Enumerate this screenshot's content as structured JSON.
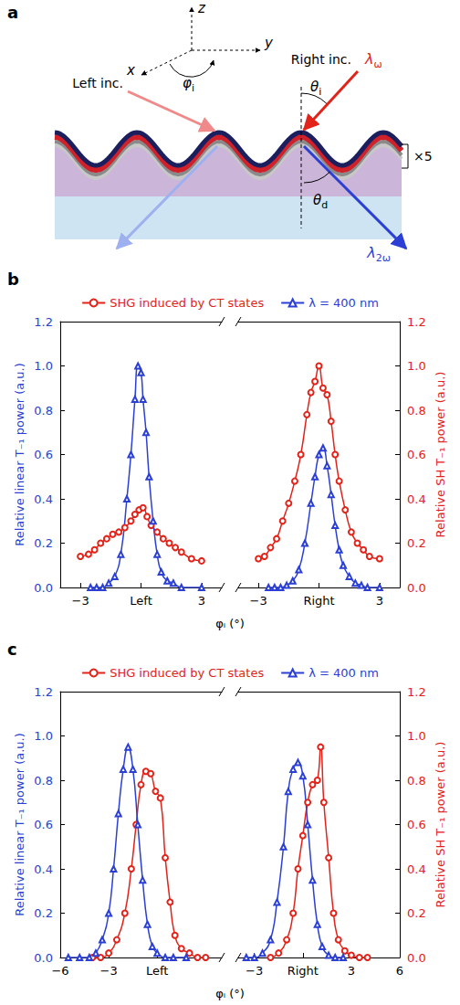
{
  "diagram": {
    "panel": "a",
    "labels": {
      "z": "z",
      "y": "y",
      "x": "x",
      "phi": {
        "base": "φ",
        "sub": "i"
      },
      "left": "Left inc.",
      "right": "Right inc.",
      "lambda_in": {
        "base": "λ",
        "sub": "ω"
      },
      "theta_i": {
        "base": "θ",
        "sub": "i"
      },
      "theta_d": {
        "base": "θ",
        "sub": "d"
      },
      "lambda_out": {
        "base": "λ",
        "sub": "2ω"
      },
      "layers": "×5"
    }
  },
  "chart_data": [
    {
      "type": "line",
      "panel": "b",
      "x_label": "φᵢ (°)",
      "y_label": "Relative linear T₋₁ power (a.u.)",
      "y2_label": "Relative SH T₋₁ power (a.u.)",
      "ylim": [
        0,
        1.2
      ],
      "yticks": [
        {
          "value": 0,
          "label": "0.0"
        },
        0.2,
        0.4,
        0.6,
        0.8,
        {
          "value": 1,
          "label": "1.0"
        },
        1.2
      ],
      "y2lim": [
        0,
        1.2
      ],
      "y2ticks": [
        {
          "value": 0,
          "label": "0.0"
        },
        0.2,
        0.4,
        0.6,
        0.8,
        {
          "value": 1,
          "label": "1.0"
        },
        1.2
      ],
      "legend": "top",
      "segments": [
        {
          "xlim": [
            -4,
            4
          ],
          "xticks": [
            {
              "value": -3,
              "label": "−3"
            },
            {
              "value": 0,
              "label": "Left"
            },
            3
          ],
          "series": [
            {
              "name": "SHG induced by CT states",
              "color": "#e2231a",
              "marker": "circle",
              "axis": "y2",
              "x": [
                -3,
                -2.6,
                -2.3,
                -2.0,
                -1.7,
                -1.4,
                -1.1,
                -0.8,
                -0.5,
                -0.3,
                -0.1,
                0.1,
                0.3,
                0.5,
                0.8,
                1.1,
                1.4,
                1.7,
                2.0,
                2.5,
                3.0
              ],
              "values": [
                0.14,
                0.15,
                0.17,
                0.2,
                0.22,
                0.24,
                0.25,
                0.27,
                0.3,
                0.33,
                0.35,
                0.36,
                0.32,
                0.28,
                0.25,
                0.22,
                0.2,
                0.18,
                0.16,
                0.13,
                0.12
              ]
            },
            {
              "name": "λ = 400 nm",
              "color": "#2b3fd4",
              "marker": "triangle",
              "axis": "y",
              "x": [
                -2.5,
                -2.2,
                -1.9,
                -1.6,
                -1.3,
                -1.0,
                -0.7,
                -0.5,
                -0.3,
                -0.15,
                0,
                0.1,
                0.25,
                0.4,
                0.6,
                0.8,
                1.0,
                1.3,
                1.6,
                2.0,
                3.0
              ],
              "values": [
                0,
                0,
                0,
                0.02,
                0.05,
                0.15,
                0.4,
                0.6,
                0.85,
                1.0,
                0.97,
                0.85,
                0.7,
                0.5,
                0.3,
                0.15,
                0.07,
                0.03,
                0.02,
                0,
                0
              ]
            }
          ]
        },
        {
          "xlim": [
            -4,
            4
          ],
          "xticks": [
            {
              "value": -3,
              "label": "−3"
            },
            {
              "value": 0,
              "label": "Right"
            },
            3
          ],
          "series": [
            {
              "name": "SHG induced by CT states",
              "color": "#e2231a",
              "marker": "circle",
              "axis": "y2",
              "x": [
                -3,
                -2.7,
                -2.4,
                -2.1,
                -1.8,
                -1.5,
                -1.2,
                -0.9,
                -0.6,
                -0.4,
                -0.2,
                0,
                0.2,
                0.4,
                0.6,
                0.8,
                1.0,
                1.3,
                1.6,
                1.9,
                2.2,
                2.5,
                3.0
              ],
              "values": [
                0.13,
                0.14,
                0.18,
                0.22,
                0.3,
                0.38,
                0.48,
                0.6,
                0.78,
                0.88,
                0.93,
                1.0,
                0.9,
                0.87,
                0.75,
                0.6,
                0.48,
                0.35,
                0.25,
                0.2,
                0.17,
                0.14,
                0.13
              ]
            },
            {
              "name": "λ = 400 nm",
              "color": "#2b3fd4",
              "marker": "triangle",
              "axis": "y",
              "x": [
                -2.5,
                -2.2,
                -1.9,
                -1.6,
                -1.3,
                -1.0,
                -0.7,
                -0.4,
                -0.2,
                0,
                0.2,
                0.4,
                0.6,
                0.8,
                1.0,
                1.2,
                1.5,
                1.8,
                2.1,
                2.4,
                3.0
              ],
              "values": [
                0,
                0,
                0,
                0.01,
                0.03,
                0.08,
                0.2,
                0.38,
                0.5,
                0.6,
                0.63,
                0.55,
                0.42,
                0.28,
                0.17,
                0.1,
                0.05,
                0.02,
                0.01,
                0,
                0
              ]
            }
          ]
        }
      ]
    },
    {
      "type": "line",
      "panel": "c",
      "x_label": "φᵢ (°)",
      "y_label": "Relative linear T₋₁ power (a.u.)",
      "y2_label": "Relative SH T₋₁ power (a.u.)",
      "ylim": [
        0,
        1.2
      ],
      "yticks": [
        {
          "value": 0,
          "label": "0.0"
        },
        0.2,
        0.4,
        0.6,
        0.8,
        {
          "value": 1,
          "label": "1.0"
        },
        1.2
      ],
      "y2lim": [
        0,
        1.2
      ],
      "y2ticks": [
        {
          "value": 0,
          "label": "0.0"
        },
        0.2,
        0.4,
        0.6,
        0.8,
        {
          "value": 1,
          "label": "1.0"
        },
        1.2
      ],
      "legend": "top",
      "segments": [
        {
          "xlim": [
            -6,
            4
          ],
          "xticks": [
            {
              "value": -6,
              "label": "−6"
            },
            {
              "value": -3,
              "label": "−3"
            },
            {
              "value": 0,
              "label": "Left"
            }
          ],
          "series": [
            {
              "name": "SHG induced by CT states",
              "color": "#e2231a",
              "marker": "circle",
              "axis": "y2",
              "x": [
                -4,
                -3.5,
                -3,
                -2.5,
                -2,
                -1.6,
                -1.3,
                -1.0,
                -0.7,
                -0.4,
                -0.1,
                0.2,
                0.5,
                0.8,
                1.1,
                1.5,
                2.0,
                2.5,
                3.0
              ],
              "values": [
                0,
                0,
                0.02,
                0.08,
                0.2,
                0.4,
                0.6,
                0.78,
                0.84,
                0.83,
                0.75,
                0.72,
                0.45,
                0.25,
                0.1,
                0.04,
                0.02,
                0,
                0
              ]
            },
            {
              "name": "λ = 400 nm",
              "color": "#2b3fd4",
              "marker": "triangle",
              "axis": "y",
              "x": [
                -5.5,
                -4.8,
                -4.2,
                -3.8,
                -3.4,
                -3.0,
                -2.7,
                -2.4,
                -2.1,
                -1.8,
                -1.5,
                -1.2,
                -0.9,
                -0.6,
                -0.3,
                0,
                0.5,
                1.0,
                1.8
              ],
              "values": [
                0,
                0,
                0,
                0.02,
                0.08,
                0.2,
                0.4,
                0.65,
                0.85,
                0.95,
                0.85,
                0.6,
                0.35,
                0.15,
                0.05,
                0.02,
                0,
                0,
                0
              ]
            }
          ]
        },
        {
          "xlim": [
            -4,
            6
          ],
          "xticks": [
            {
              "value": -3,
              "label": "−3"
            },
            {
              "value": 0,
              "label": "Right"
            },
            3,
            6
          ],
          "series": [
            {
              "name": "SHG induced by CT states",
              "color": "#e2231a",
              "marker": "circle",
              "axis": "y2",
              "x": [
                -2,
                -1.5,
                -1,
                -0.6,
                -0.3,
                0,
                0.3,
                0.6,
                0.9,
                1.1,
                1.3,
                1.6,
                1.9,
                2.2,
                2.6,
                3.0,
                3.5,
                4.0
              ],
              "values": [
                0,
                0.02,
                0.08,
                0.2,
                0.4,
                0.55,
                0.7,
                0.78,
                0.8,
                0.95,
                0.7,
                0.45,
                0.2,
                0.08,
                0.03,
                0.01,
                0,
                0
              ]
            },
            {
              "name": "λ = 400 nm",
              "color": "#2b3fd4",
              "marker": "triangle",
              "axis": "y",
              "x": [
                -3.5,
                -3,
                -2.5,
                -2,
                -1.6,
                -1.2,
                -0.9,
                -0.6,
                -0.3,
                0,
                0.3,
                0.6,
                0.9,
                1.2,
                1.6,
                2.0,
                2.5
              ],
              "values": [
                0,
                0,
                0.02,
                0.08,
                0.25,
                0.5,
                0.75,
                0.85,
                0.88,
                0.82,
                0.6,
                0.35,
                0.15,
                0.05,
                0.01,
                0,
                0
              ]
            }
          ]
        }
      ]
    }
  ]
}
